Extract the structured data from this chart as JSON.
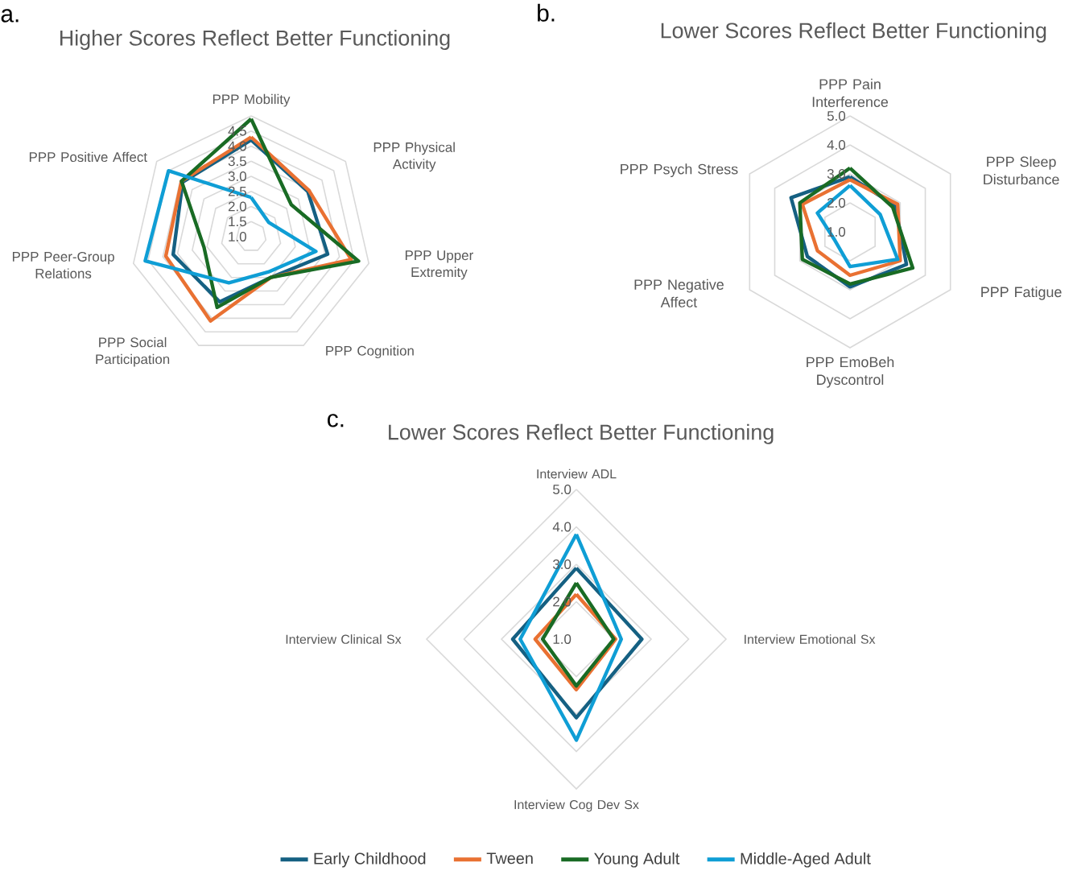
{
  "chart_data": [
    {
      "type": "radar",
      "title": "Higher Scores Reflect Better Functioning",
      "annotations": [
        "a."
      ],
      "categories": [
        "PPP Mobility",
        "PPP Physical Activity",
        "PPP Upper Extremity",
        "PPP Cognition",
        "PPP Social Participation",
        "PPP Peer-Group Relations",
        "PPP Positive Affect"
      ],
      "ylim": [
        1,
        5
      ],
      "yticks": [
        {
          "value": 1,
          "label": "1.0"
        },
        {
          "value": 1.5,
          "label": "1.5"
        },
        {
          "value": 2,
          "label": "2.0"
        },
        {
          "value": 2.5,
          "label": "2.5"
        },
        {
          "value": 3,
          "label": "3.0"
        },
        {
          "value": 3.5,
          "label": "3.5"
        },
        {
          "value": 4,
          "label": "4.0"
        },
        {
          "value": 4.5,
          "label": "4.5"
        }
      ],
      "grid": true,
      "series": [
        {
          "color": "#156082",
          "values": [
            4.2,
            3.4,
            3.6,
            2.5,
            3.4,
            3.65,
            3.9
          ]
        },
        {
          "color": "#e97132",
          "values": [
            4.3,
            3.45,
            4.4,
            2.5,
            4.1,
            3.9,
            3.95
          ]
        },
        {
          "color": "#196b24",
          "values": [
            4.9,
            2.7,
            4.65,
            2.5,
            3.6,
            2.6,
            3.95
          ]
        },
        {
          "color": "#0f9ed5",
          "values": [
            2.3,
            1.75,
            3.2,
            2.3,
            2.7,
            4.6,
            4.5
          ]
        }
      ]
    },
    {
      "type": "radar",
      "title": "Lower Scores Reflect Better Functioning",
      "annotations": [
        "b."
      ],
      "categories": [
        "PPP Pain Interference",
        "PPP Sleep Disturbance",
        "PPP Fatigue",
        "PPP EmoBeh Dyscontrol",
        "PPP Negative Affect",
        "PPP Psych Stress"
      ],
      "ylim": [
        1,
        5
      ],
      "yticks": [
        {
          "value": 1,
          "label": "1.0"
        },
        {
          "value": 2,
          "label": "2.0"
        },
        {
          "value": 3,
          "label": "3.0"
        },
        {
          "value": 4,
          "label": "4.0"
        },
        {
          "value": 5,
          "label": "5.0"
        }
      ],
      "grid": true,
      "series": [
        {
          "color": "#156082",
          "values": [
            2.9,
            2.8,
            3.25,
            2.9,
            2.7,
            3.35
          ]
        },
        {
          "color": "#e97132",
          "values": [
            2.8,
            2.9,
            3.0,
            2.5,
            2.3,
            2.9
          ]
        },
        {
          "color": "#196b24",
          "values": [
            3.2,
            2.7,
            3.5,
            2.8,
            2.9,
            3.0
          ]
        },
        {
          "color": "#0f9ed5",
          "values": [
            2.6,
            2.2,
            2.9,
            2.2,
            1.6,
            2.3
          ]
        }
      ]
    },
    {
      "type": "radar",
      "title": "Lower Scores Reflect Better Functioning",
      "annotations": [
        "c."
      ],
      "categories": [
        "Interview ADL",
        "Interview Emotional Sx",
        "Interview Cog Dev Sx",
        "Interview Clinical Sx"
      ],
      "ylim": [
        1,
        5
      ],
      "yticks": [
        {
          "value": 1,
          "label": "1.0"
        },
        {
          "value": 2,
          "label": "2.0"
        },
        {
          "value": 3,
          "label": "3.0"
        },
        {
          "value": 4,
          "label": "4.0"
        },
        {
          "value": 5,
          "label": "5.0"
        }
      ],
      "grid": true,
      "legend": "bottom",
      "series": [
        {
          "name": "Early Childhood",
          "color": "#156082",
          "values": [
            2.9,
            2.75,
            3.1,
            2.7
          ]
        },
        {
          "name": "Tween",
          "color": "#e97132",
          "values": [
            2.2,
            2.05,
            2.35,
            2.1
          ]
        },
        {
          "name": "Young Adult",
          "color": "#196b24",
          "values": [
            2.5,
            2.0,
            2.25,
            1.9
          ]
        },
        {
          "name": "Middle-Aged Adult",
          "color": "#0f9ed5",
          "values": [
            3.8,
            2.2,
            3.7,
            2.5
          ]
        }
      ]
    }
  ]
}
